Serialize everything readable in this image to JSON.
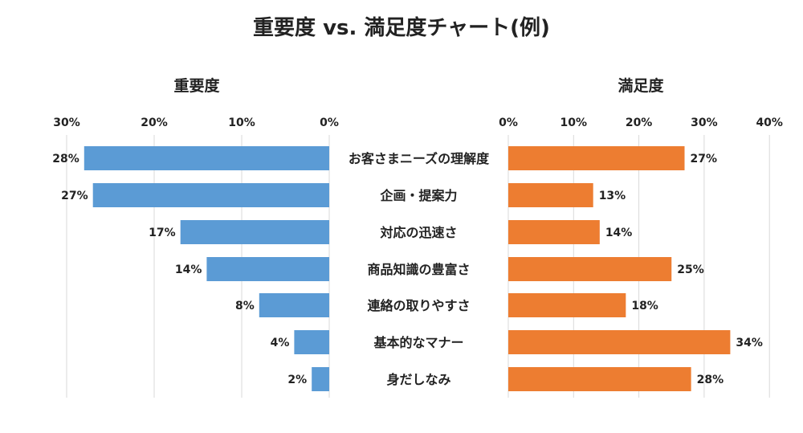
{
  "chart_data": [
    {
      "type": "bar",
      "orientation": "horizontal",
      "direction": "right-to-left",
      "title": "重要度",
      "categories": [
        "お客さまニーズの理解度",
        "企画・提案力",
        "対応の迅速さ",
        "商品知識の豊富さ",
        "連絡の取りやすさ",
        "基本的なマナー",
        "身だしなみ"
      ],
      "values": [
        28,
        27,
        17,
        14,
        8,
        4,
        2
      ],
      "unit": "%",
      "xlim": [
        0,
        30
      ],
      "ticks": [
        30,
        20,
        10,
        0
      ],
      "tick_labels": [
        "30%",
        "20%",
        "10%",
        "0%"
      ],
      "data_labels": [
        "28%",
        "27%",
        "17%",
        "14%",
        "8%",
        "4%",
        "2%"
      ],
      "color": "#5B9BD5",
      "grid": true
    },
    {
      "type": "bar",
      "orientation": "horizontal",
      "direction": "left-to-right",
      "title": "満足度",
      "categories": [
        "お客さまニーズの理解度",
        "企画・提案力",
        "対応の迅速さ",
        "商品知識の豊富さ",
        "連絡の取りやすさ",
        "基本的なマナー",
        "身だしなみ"
      ],
      "values": [
        27,
        13,
        14,
        25,
        18,
        34,
        28
      ],
      "unit": "%",
      "xlim": [
        0,
        40
      ],
      "ticks": [
        0,
        10,
        20,
        30,
        40
      ],
      "tick_labels": [
        "0%",
        "10%",
        "20%",
        "30%",
        "40%"
      ],
      "data_labels": [
        "27%",
        "13%",
        "14%",
        "25%",
        "18%",
        "34%",
        "28%"
      ],
      "color": "#ED7D31",
      "grid": true
    }
  ],
  "title": "重要度 vs. 満足度チャート(例)"
}
